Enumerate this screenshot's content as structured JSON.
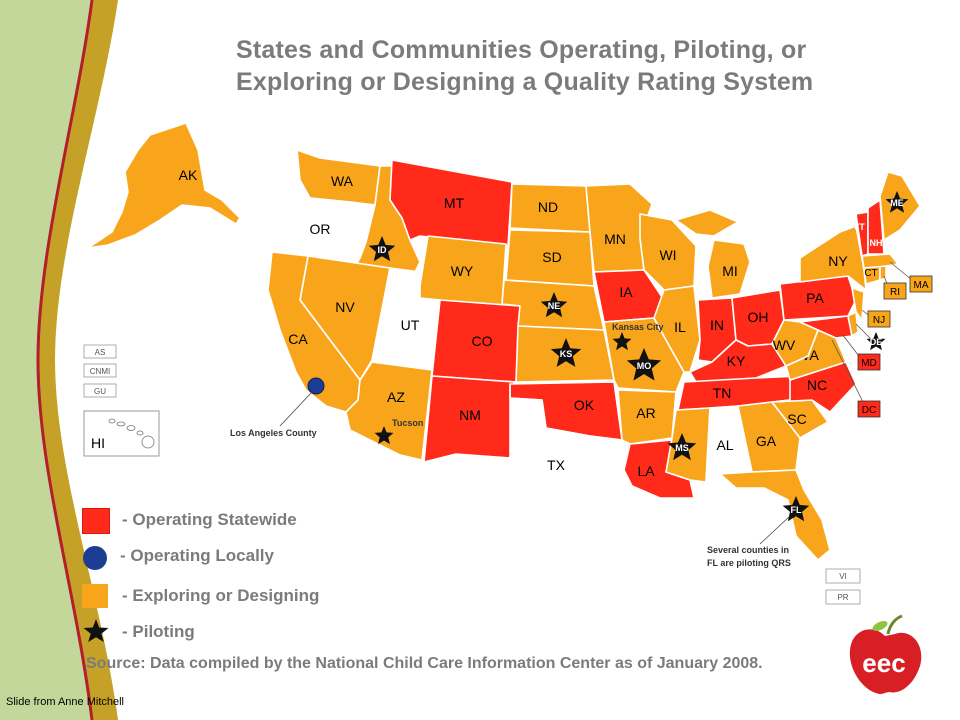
{
  "title_line1": "States and Communities Operating, Piloting, or",
  "title_line2": "Exploring or Designing a Quality Rating System",
  "colors": {
    "operating_statewide": "#ff2a1a",
    "operating_locally": "#1c3d94",
    "exploring": "#f9a51c",
    "none": "#ffffff",
    "piloting": "#111111"
  },
  "legend": {
    "operating_statewide": "- Operating Statewide",
    "operating_locally": "- Operating Locally",
    "exploring": "- Exploring or Designing",
    "piloting": "- Piloting"
  },
  "states": [
    {
      "id": "AK",
      "status": "exploring"
    },
    {
      "id": "HI",
      "status": "none"
    },
    {
      "id": "WA",
      "status": "exploring"
    },
    {
      "id": "OR",
      "status": "none"
    },
    {
      "id": "CA",
      "status": "exploring"
    },
    {
      "id": "NV",
      "status": "exploring"
    },
    {
      "id": "ID",
      "status": "exploring",
      "pilot": true
    },
    {
      "id": "MT",
      "status": "operating_statewide"
    },
    {
      "id": "WY",
      "status": "exploring"
    },
    {
      "id": "UT",
      "status": "none"
    },
    {
      "id": "AZ",
      "status": "exploring"
    },
    {
      "id": "CO",
      "status": "operating_statewide"
    },
    {
      "id": "NM",
      "status": "operating_statewide"
    },
    {
      "id": "ND",
      "status": "exploring"
    },
    {
      "id": "SD",
      "status": "exploring"
    },
    {
      "id": "NE",
      "status": "exploring",
      "pilot": true
    },
    {
      "id": "KS",
      "status": "exploring",
      "pilot": true
    },
    {
      "id": "OK",
      "status": "operating_statewide"
    },
    {
      "id": "TX",
      "status": "none"
    },
    {
      "id": "MN",
      "status": "exploring"
    },
    {
      "id": "IA",
      "status": "operating_statewide"
    },
    {
      "id": "MO",
      "status": "exploring",
      "pilot": true
    },
    {
      "id": "AR",
      "status": "exploring"
    },
    {
      "id": "LA",
      "status": "operating_statewide"
    },
    {
      "id": "WI",
      "status": "exploring"
    },
    {
      "id": "IL",
      "status": "exploring"
    },
    {
      "id": "MI",
      "status": "exploring"
    },
    {
      "id": "IN",
      "status": "operating_statewide"
    },
    {
      "id": "OH",
      "status": "operating_statewide"
    },
    {
      "id": "KY",
      "status": "operating_statewide"
    },
    {
      "id": "TN",
      "status": "operating_statewide"
    },
    {
      "id": "MS",
      "status": "exploring",
      "pilot": true
    },
    {
      "id": "AL",
      "status": "none"
    },
    {
      "id": "GA",
      "status": "exploring"
    },
    {
      "id": "FL",
      "status": "exploring",
      "pilot": true
    },
    {
      "id": "SC",
      "status": "exploring"
    },
    {
      "id": "NC",
      "status": "operating_statewide"
    },
    {
      "id": "VA",
      "status": "exploring"
    },
    {
      "id": "WV",
      "status": "exploring"
    },
    {
      "id": "PA",
      "status": "operating_statewide"
    },
    {
      "id": "NY",
      "status": "exploring"
    },
    {
      "id": "VT",
      "status": "operating_statewide"
    },
    {
      "id": "NH",
      "status": "operating_statewide"
    },
    {
      "id": "ME",
      "status": "exploring",
      "pilot": true
    },
    {
      "id": "MA",
      "status": "exploring"
    },
    {
      "id": "RI",
      "status": "exploring"
    },
    {
      "id": "CT",
      "status": "exploring"
    },
    {
      "id": "NJ",
      "status": "exploring"
    },
    {
      "id": "DE",
      "status": "exploring",
      "pilot": true
    },
    {
      "id": "MD",
      "status": "operating_statewide"
    },
    {
      "id": "DC",
      "status": "operating_statewide"
    }
  ],
  "territories": [
    "AS",
    "CNMI",
    "GU",
    "VI",
    "PR"
  ],
  "local_programs": [
    {
      "name": "Los Angeles County",
      "status": "operating_locally"
    },
    {
      "name": "Tucson",
      "status": "piloting"
    },
    {
      "name": "Kansas City",
      "status": "piloting"
    }
  ],
  "annotations": {
    "los_angeles": "Los Angeles County",
    "tucson": "Tucson",
    "kansas_city": "Kansas City",
    "florida_line1": "Several counties in",
    "florida_line2": "FL are piloting QRS"
  },
  "source": "Source: Data compiled by the National Child Care Information Center as of January 2008.",
  "credit": "Slide from Anne Mitchell",
  "logo_text": "eec"
}
